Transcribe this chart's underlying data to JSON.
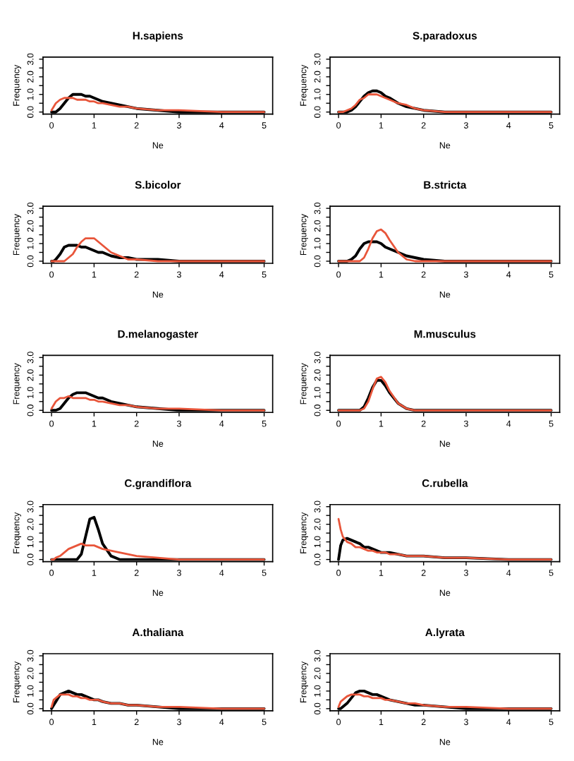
{
  "chart_data": [
    {
      "type": "line",
      "title": "H.sapiens",
      "xlabel": "Ne",
      "ylabel": "Frequency",
      "xlim": [
        -0.2,
        5.2
      ],
      "ylim": [
        -0.12,
        3.12
      ],
      "xticks": [
        0,
        1,
        2,
        3,
        4,
        5
      ],
      "yticks": [
        {
          "value": 0,
          "label": "0.0"
        },
        {
          "value": 0.5,
          "label": null
        },
        {
          "value": 1,
          "label": "1.0"
        },
        {
          "value": 1.5,
          "label": null
        },
        {
          "value": 2,
          "label": "2.0"
        },
        {
          "value": 2.5,
          "label": null
        },
        {
          "value": 3,
          "label": "3.0"
        }
      ],
      "grid": false,
      "legend": false,
      "x": [
        0,
        0.05,
        0.1,
        0.2,
        0.3,
        0.4,
        0.5,
        0.6,
        0.7,
        0.8,
        0.9,
        1.0,
        1.1,
        1.2,
        1.4,
        1.6,
        1.8,
        2.0,
        2.5,
        3,
        4,
        5
      ],
      "series": [
        {
          "color": "#000000",
          "values": [
            0,
            0,
            0,
            0.2,
            0.5,
            0.8,
            1.0,
            1.0,
            1.0,
            0.9,
            0.9,
            0.8,
            0.7,
            0.6,
            0.5,
            0.4,
            0.3,
            0.2,
            0.1,
            0,
            0,
            0
          ]
        },
        {
          "color": "#e8553a",
          "values": [
            0.1,
            0.3,
            0.5,
            0.7,
            0.8,
            0.8,
            0.8,
            0.7,
            0.7,
            0.7,
            0.6,
            0.6,
            0.5,
            0.5,
            0.4,
            0.3,
            0.3,
            0.2,
            0.1,
            0.1,
            0,
            0
          ]
        }
      ]
    },
    {
      "type": "line",
      "title": "S.paradoxus",
      "xlabel": "Ne",
      "ylabel": "Frequency",
      "xlim": [
        -0.2,
        5.2
      ],
      "ylim": [
        -0.12,
        3.12
      ],
      "xticks": [
        0,
        1,
        2,
        3,
        4,
        5
      ],
      "yticks": [
        {
          "value": 0,
          "label": "0.0"
        },
        {
          "value": 0.5,
          "label": null
        },
        {
          "value": 1,
          "label": "1.0"
        },
        {
          "value": 1.5,
          "label": null
        },
        {
          "value": 2,
          "label": "2.0"
        },
        {
          "value": 2.5,
          "label": null
        },
        {
          "value": 3,
          "label": "3.0"
        }
      ],
      "grid": false,
      "legend": false,
      "x": [
        0,
        0.05,
        0.1,
        0.2,
        0.3,
        0.4,
        0.5,
        0.6,
        0.7,
        0.8,
        0.9,
        1.0,
        1.1,
        1.2,
        1.4,
        1.6,
        1.8,
        2.0,
        2.5,
        3,
        4,
        5
      ],
      "series": [
        {
          "color": "#000000",
          "values": [
            0,
            0,
            0,
            0,
            0.1,
            0.3,
            0.6,
            0.9,
            1.1,
            1.2,
            1.2,
            1.1,
            0.9,
            0.8,
            0.5,
            0.3,
            0.2,
            0.1,
            0,
            0,
            0,
            0
          ]
        },
        {
          "color": "#e8553a",
          "values": [
            0,
            0,
            0,
            0.1,
            0.2,
            0.4,
            0.7,
            0.8,
            1.0,
            1.0,
            1.0,
            0.9,
            0.8,
            0.7,
            0.5,
            0.4,
            0.2,
            0.1,
            0,
            0,
            0,
            0
          ]
        }
      ]
    },
    {
      "type": "line",
      "title": "S.bicolor",
      "xlabel": "Ne",
      "ylabel": "Frequency",
      "xlim": [
        -0.2,
        5.2
      ],
      "ylim": [
        -0.12,
        3.12
      ],
      "xticks": [
        0,
        1,
        2,
        3,
        4,
        5
      ],
      "yticks": [
        {
          "value": 0,
          "label": "0.0"
        },
        {
          "value": 0.5,
          "label": null
        },
        {
          "value": 1,
          "label": "1.0"
        },
        {
          "value": 1.5,
          "label": null
        },
        {
          "value": 2,
          "label": "2.0"
        },
        {
          "value": 2.5,
          "label": null
        },
        {
          "value": 3,
          "label": "3.0"
        }
      ],
      "grid": false,
      "legend": false,
      "x": [
        0,
        0.05,
        0.1,
        0.2,
        0.3,
        0.4,
        0.5,
        0.6,
        0.7,
        0.8,
        0.9,
        1.0,
        1.1,
        1.2,
        1.4,
        1.6,
        1.8,
        2.0,
        2.5,
        3,
        4,
        5
      ],
      "series": [
        {
          "color": "#000000",
          "values": [
            0,
            0,
            0.1,
            0.4,
            0.8,
            0.9,
            0.9,
            0.9,
            0.8,
            0.8,
            0.7,
            0.6,
            0.5,
            0.5,
            0.3,
            0.2,
            0.2,
            0.1,
            0.1,
            0,
            0,
            0
          ]
        },
        {
          "color": "#e8553a",
          "values": [
            0,
            0,
            0,
            0,
            0,
            0.2,
            0.4,
            0.8,
            1.1,
            1.3,
            1.3,
            1.3,
            1.1,
            0.9,
            0.5,
            0.3,
            0.1,
            0.1,
            0,
            0,
            0,
            0
          ]
        }
      ]
    },
    {
      "type": "line",
      "title": "B.stricta",
      "xlabel": "Ne",
      "ylabel": "Frequency",
      "xlim": [
        -0.2,
        5.2
      ],
      "ylim": [
        -0.12,
        3.12
      ],
      "xticks": [
        0,
        1,
        2,
        3,
        4,
        5
      ],
      "yticks": [
        {
          "value": 0,
          "label": "0.0"
        },
        {
          "value": 0.5,
          "label": null
        },
        {
          "value": 1,
          "label": "1.0"
        },
        {
          "value": 1.5,
          "label": null
        },
        {
          "value": 2,
          "label": "2.0"
        },
        {
          "value": 2.5,
          "label": null
        },
        {
          "value": 3,
          "label": "3.0"
        }
      ],
      "grid": false,
      "legend": false,
      "x": [
        0,
        0.05,
        0.1,
        0.2,
        0.3,
        0.4,
        0.5,
        0.6,
        0.7,
        0.8,
        0.9,
        1.0,
        1.1,
        1.2,
        1.4,
        1.6,
        1.8,
        2.0,
        2.5,
        3,
        4,
        5
      ],
      "series": [
        {
          "color": "#000000",
          "values": [
            0,
            0,
            0,
            0,
            0.1,
            0.3,
            0.7,
            1.0,
            1.1,
            1.1,
            1.1,
            1.0,
            0.8,
            0.7,
            0.5,
            0.3,
            0.2,
            0.1,
            0,
            0,
            0,
            0
          ]
        },
        {
          "color": "#e8553a",
          "values": [
            0,
            0,
            0,
            0,
            0,
            0,
            0,
            0.2,
            0.7,
            1.3,
            1.7,
            1.8,
            1.6,
            1.2,
            0.5,
            0.1,
            0,
            0,
            0,
            0,
            0,
            0
          ]
        }
      ]
    },
    {
      "type": "line",
      "title": "D.melanogaster",
      "xlabel": "Ne",
      "ylabel": "Frequency",
      "xlim": [
        -0.2,
        5.2
      ],
      "ylim": [
        -0.12,
        3.12
      ],
      "xticks": [
        0,
        1,
        2,
        3,
        4,
        5
      ],
      "yticks": [
        {
          "value": 0,
          "label": "0.0"
        },
        {
          "value": 0.5,
          "label": null
        },
        {
          "value": 1,
          "label": "1.0"
        },
        {
          "value": 1.5,
          "label": null
        },
        {
          "value": 2,
          "label": "2.0"
        },
        {
          "value": 2.5,
          "label": null
        },
        {
          "value": 3,
          "label": "3.0"
        }
      ],
      "grid": false,
      "legend": false,
      "x": [
        0,
        0.05,
        0.1,
        0.2,
        0.3,
        0.4,
        0.5,
        0.6,
        0.7,
        0.8,
        0.9,
        1.0,
        1.1,
        1.2,
        1.4,
        1.6,
        1.8,
        2.0,
        2.5,
        3,
        4,
        5
      ],
      "series": [
        {
          "color": "#000000",
          "values": [
            0,
            0,
            0,
            0.1,
            0.4,
            0.7,
            0.9,
            1.0,
            1.0,
            1.0,
            0.9,
            0.8,
            0.7,
            0.7,
            0.5,
            0.4,
            0.3,
            0.2,
            0.1,
            0,
            0,
            0
          ]
        },
        {
          "color": "#e8553a",
          "values": [
            0.1,
            0.3,
            0.5,
            0.7,
            0.7,
            0.8,
            0.7,
            0.7,
            0.7,
            0.7,
            0.6,
            0.6,
            0.5,
            0.5,
            0.4,
            0.3,
            0.3,
            0.2,
            0.1,
            0.1,
            0,
            0
          ]
        }
      ]
    },
    {
      "type": "line",
      "title": "M.musculus",
      "xlabel": "Ne",
      "ylabel": "Frequency",
      "xlim": [
        -0.2,
        5.2
      ],
      "ylim": [
        -0.12,
        3.12
      ],
      "xticks": [
        0,
        1,
        2,
        3,
        4,
        5
      ],
      "yticks": [
        {
          "value": 0,
          "label": "0.0"
        },
        {
          "value": 0.5,
          "label": null
        },
        {
          "value": 1,
          "label": "1.0"
        },
        {
          "value": 1.5,
          "label": null
        },
        {
          "value": 2,
          "label": "2.0"
        },
        {
          "value": 2.5,
          "label": null
        },
        {
          "value": 3,
          "label": "3.0"
        }
      ],
      "grid": false,
      "legend": false,
      "x": [
        0,
        0.05,
        0.1,
        0.2,
        0.3,
        0.4,
        0.5,
        0.6,
        0.7,
        0.8,
        0.9,
        1.0,
        1.1,
        1.2,
        1.4,
        1.6,
        1.8,
        2.0,
        2.5,
        3,
        4,
        5
      ],
      "series": [
        {
          "color": "#000000",
          "values": [
            0,
            0,
            0,
            0,
            0,
            0,
            0,
            0.2,
            0.7,
            1.3,
            1.7,
            1.7,
            1.4,
            1.0,
            0.4,
            0.1,
            0,
            0,
            0,
            0,
            0,
            0
          ]
        },
        {
          "color": "#e8553a",
          "values": [
            0,
            0,
            0,
            0,
            0,
            0,
            0,
            0.1,
            0.5,
            1.2,
            1.8,
            1.9,
            1.6,
            1.1,
            0.4,
            0.1,
            0,
            0,
            0,
            0,
            0,
            0
          ]
        }
      ]
    },
    {
      "type": "line",
      "title": "C.grandiflora",
      "xlabel": "Ne",
      "ylabel": "Frequency",
      "xlim": [
        -0.2,
        5.2
      ],
      "ylim": [
        -0.12,
        3.12
      ],
      "xticks": [
        0,
        1,
        2,
        3,
        4,
        5
      ],
      "yticks": [
        {
          "value": 0,
          "label": "0.0"
        },
        {
          "value": 0.5,
          "label": null
        },
        {
          "value": 1,
          "label": "1.0"
        },
        {
          "value": 1.5,
          "label": null
        },
        {
          "value": 2,
          "label": "2.0"
        },
        {
          "value": 2.5,
          "label": null
        },
        {
          "value": 3,
          "label": "3.0"
        }
      ],
      "grid": false,
      "legend": false,
      "x": [
        0,
        0.05,
        0.1,
        0.2,
        0.3,
        0.4,
        0.5,
        0.6,
        0.7,
        0.8,
        0.9,
        1.0,
        1.1,
        1.2,
        1.4,
        1.6,
        1.8,
        2.0,
        2.5,
        3,
        4,
        5
      ],
      "series": [
        {
          "color": "#000000",
          "values": [
            0,
            0,
            0,
            0,
            0,
            0,
            0,
            0,
            0.3,
            1.3,
            2.3,
            2.4,
            1.7,
            0.9,
            0.2,
            0,
            0,
            0,
            0,
            0,
            0,
            0
          ]
        },
        {
          "color": "#e8553a",
          "values": [
            0,
            0,
            0.1,
            0.2,
            0.4,
            0.6,
            0.7,
            0.8,
            0.9,
            0.8,
            0.8,
            0.8,
            0.7,
            0.6,
            0.5,
            0.4,
            0.3,
            0.2,
            0.1,
            0,
            0,
            0
          ]
        }
      ]
    },
    {
      "type": "line",
      "title": "C.rubella",
      "xlabel": "Ne",
      "ylabel": "Frequency",
      "xlim": [
        -0.2,
        5.2
      ],
      "ylim": [
        -0.12,
        3.12
      ],
      "xticks": [
        0,
        1,
        2,
        3,
        4,
        5
      ],
      "yticks": [
        {
          "value": 0,
          "label": "0.0"
        },
        {
          "value": 0.5,
          "label": null
        },
        {
          "value": 1,
          "label": "1.0"
        },
        {
          "value": 1.5,
          "label": null
        },
        {
          "value": 2,
          "label": "2.0"
        },
        {
          "value": 2.5,
          "label": null
        },
        {
          "value": 3,
          "label": "3.0"
        }
      ],
      "grid": false,
      "legend": false,
      "x": [
        0,
        0.05,
        0.1,
        0.2,
        0.3,
        0.4,
        0.5,
        0.6,
        0.7,
        0.8,
        0.9,
        1.0,
        1.1,
        1.2,
        1.4,
        1.6,
        1.8,
        2.0,
        2.5,
        3,
        4,
        5
      ],
      "series": [
        {
          "color": "#000000",
          "values": [
            0,
            0.8,
            1.1,
            1.2,
            1.1,
            1.0,
            0.9,
            0.7,
            0.7,
            0.6,
            0.5,
            0.4,
            0.4,
            0.4,
            0.3,
            0.2,
            0.2,
            0.2,
            0.1,
            0.1,
            0,
            0
          ]
        },
        {
          "color": "#e8553a",
          "values": [
            2.3,
            1.7,
            1.3,
            1.0,
            0.9,
            0.7,
            0.7,
            0.6,
            0.5,
            0.5,
            0.4,
            0.4,
            0.4,
            0.3,
            0.3,
            0.2,
            0.2,
            0.2,
            0.1,
            0.1,
            0,
            0
          ]
        }
      ]
    },
    {
      "type": "line",
      "title": "A.thaliana",
      "xlabel": "Ne",
      "ylabel": "Frequency",
      "xlim": [
        -0.2,
        5.2
      ],
      "ylim": [
        -0.12,
        3.12
      ],
      "xticks": [
        0,
        1,
        2,
        3,
        4,
        5
      ],
      "yticks": [
        {
          "value": 0,
          "label": "0.0"
        },
        {
          "value": 0.5,
          "label": null
        },
        {
          "value": 1,
          "label": "1.0"
        },
        {
          "value": 1.5,
          "label": null
        },
        {
          "value": 2,
          "label": "2.0"
        },
        {
          "value": 2.5,
          "label": null
        },
        {
          "value": 3,
          "label": "3.0"
        }
      ],
      "grid": false,
      "legend": false,
      "x": [
        0,
        0.05,
        0.1,
        0.2,
        0.3,
        0.4,
        0.5,
        0.6,
        0.7,
        0.8,
        0.9,
        1.0,
        1.1,
        1.2,
        1.4,
        1.6,
        1.8,
        2.0,
        2.5,
        3,
        4,
        5
      ],
      "series": [
        {
          "color": "#000000",
          "values": [
            0,
            0.2,
            0.4,
            0.8,
            0.9,
            1.0,
            0.9,
            0.8,
            0.8,
            0.7,
            0.6,
            0.5,
            0.5,
            0.4,
            0.3,
            0.3,
            0.2,
            0.2,
            0.1,
            0,
            0,
            0
          ]
        },
        {
          "color": "#e8553a",
          "values": [
            0.1,
            0.5,
            0.6,
            0.8,
            0.8,
            0.8,
            0.7,
            0.7,
            0.6,
            0.6,
            0.5,
            0.5,
            0.5,
            0.4,
            0.3,
            0.3,
            0.2,
            0.2,
            0.1,
            0.1,
            0,
            0
          ]
        }
      ]
    },
    {
      "type": "line",
      "title": "A.lyrata",
      "xlabel": "Ne",
      "ylabel": "Frequency",
      "xlim": [
        -0.2,
        5.2
      ],
      "ylim": [
        -0.12,
        3.12
      ],
      "xticks": [
        0,
        1,
        2,
        3,
        4,
        5
      ],
      "yticks": [
        {
          "value": 0,
          "label": "0.0"
        },
        {
          "value": 0.5,
          "label": null
        },
        {
          "value": 1,
          "label": "1.0"
        },
        {
          "value": 1.5,
          "label": null
        },
        {
          "value": 2,
          "label": "2.0"
        },
        {
          "value": 2.5,
          "label": null
        },
        {
          "value": 3,
          "label": "3.0"
        }
      ],
      "grid": false,
      "legend": false,
      "x": [
        0,
        0.05,
        0.1,
        0.2,
        0.3,
        0.4,
        0.5,
        0.6,
        0.7,
        0.8,
        0.9,
        1.0,
        1.1,
        1.2,
        1.4,
        1.6,
        1.8,
        2.0,
        2.5,
        3,
        4,
        5
      ],
      "series": [
        {
          "color": "#000000",
          "values": [
            0,
            0,
            0.1,
            0.3,
            0.6,
            0.9,
            1.0,
            1.0,
            0.9,
            0.8,
            0.8,
            0.7,
            0.6,
            0.5,
            0.4,
            0.3,
            0.2,
            0.2,
            0.1,
            0,
            0,
            0
          ]
        },
        {
          "color": "#e8553a",
          "values": [
            0.1,
            0.4,
            0.5,
            0.7,
            0.8,
            0.8,
            0.8,
            0.7,
            0.7,
            0.6,
            0.6,
            0.6,
            0.5,
            0.5,
            0.4,
            0.3,
            0.3,
            0.2,
            0.1,
            0.1,
            0,
            0
          ]
        }
      ]
    }
  ]
}
